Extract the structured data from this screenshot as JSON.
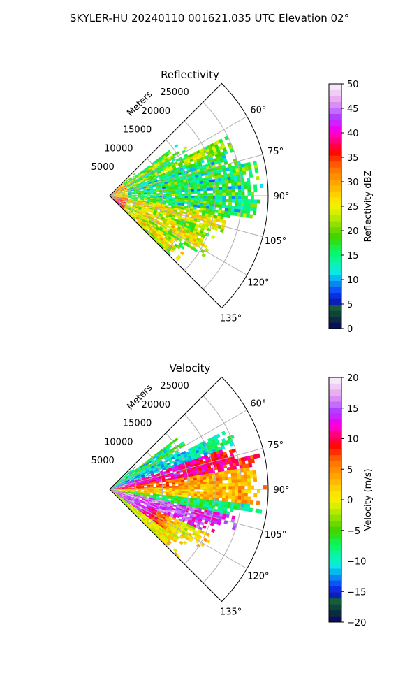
{
  "figure_title": "SKYLER-HU  20240110  001621.035 UTC Elevation 02°",
  "chart_data": [
    {
      "type": "heatmap",
      "projection": "polar-sector",
      "title": "Reflectivity",
      "radial_axis_label": "Meters",
      "radial_ticks": [
        5000,
        10000,
        15000,
        20000,
        25000
      ],
      "radial_tick_labels": [
        "5000",
        "10000",
        "15000",
        "20000",
        "25000"
      ],
      "rlim": [
        0,
        30000
      ],
      "azimuth_ticks": [
        60,
        75,
        90,
        105,
        120,
        135
      ],
      "azimuth_tick_labels": [
        "60°",
        "75°",
        "90°",
        "105°",
        "120°",
        "135°"
      ],
      "thetalim": [
        45,
        135
      ],
      "grid": true,
      "colorbar": {
        "label": "Reflectivity dBZ",
        "range": [
          0,
          50
        ],
        "ticks": [
          0,
          5,
          10,
          15,
          20,
          25,
          30,
          35,
          40,
          45,
          50
        ],
        "tick_labels": [
          "0",
          "5",
          "10",
          "15",
          "20",
          "25",
          "30",
          "35",
          "40",
          "45",
          "50"
        ],
        "colors": [
          "#0b0f5a",
          "#0c2a40",
          "#11433a",
          "#145e3a",
          "#0a1fb8",
          "#0a2ee0",
          "#0a55f5",
          "#0a86f2",
          "#0ab7f0",
          "#0ae8e6",
          "#0af0c0",
          "#0af59a",
          "#0af574",
          "#16f04c",
          "#2ce01e",
          "#44d400",
          "#6cd800",
          "#90e000",
          "#b4ea00",
          "#d8f000",
          "#f2f000",
          "#fde400",
          "#ffd000",
          "#ffba00",
          "#ffa400",
          "#ff8e00",
          "#ff7800",
          "#ff5a00",
          "#ff3000",
          "#ff0a00",
          "#ff0040",
          "#ff0080",
          "#ff00c0",
          "#f000f0",
          "#cc22ff",
          "#b040ff",
          "#c66bff",
          "#d98ef5",
          "#e7aef0",
          "#f1cdf4",
          "#f8e6fb"
        ]
      }
    },
    {
      "type": "heatmap",
      "projection": "polar-sector",
      "title": "Velocity",
      "radial_axis_label": "Meters",
      "radial_ticks": [
        5000,
        10000,
        15000,
        20000,
        25000
      ],
      "radial_tick_labels": [
        "5000",
        "10000",
        "15000",
        "20000",
        "25000"
      ],
      "rlim": [
        0,
        30000
      ],
      "azimuth_ticks": [
        60,
        75,
        90,
        105,
        120,
        135
      ],
      "azimuth_tick_labels": [
        "60°",
        "75°",
        "90°",
        "105°",
        "120°",
        "135°"
      ],
      "thetalim": [
        45,
        135
      ],
      "grid": true,
      "colorbar": {
        "label": "Velocity (m/s)",
        "range": [
          -20,
          20
        ],
        "ticks": [
          -20,
          -15,
          -10,
          -5,
          0,
          5,
          10,
          15,
          20
        ],
        "tick_labels": [
          "−20",
          "−15",
          "−10",
          "−5",
          "0",
          "5",
          "10",
          "15",
          "20"
        ],
        "colors": [
          "#0b0f5a",
          "#0c2a40",
          "#11433a",
          "#145e3a",
          "#0a1fb8",
          "#0a2ee0",
          "#0a55f5",
          "#0a86f2",
          "#0ab7f0",
          "#0ae8e6",
          "#0af0c0",
          "#0af59a",
          "#0af574",
          "#16f04c",
          "#2ce01e",
          "#44d400",
          "#6cd800",
          "#90e000",
          "#b4ea00",
          "#d8f000",
          "#f2f000",
          "#fde400",
          "#ffd000",
          "#ffba00",
          "#ffa400",
          "#ff8e00",
          "#ff7800",
          "#ff5a00",
          "#ff3000",
          "#ff0a00",
          "#ff0040",
          "#ff0080",
          "#ff00c0",
          "#f000f0",
          "#cc22ff",
          "#b040ff",
          "#c66bff",
          "#d98ef5",
          "#e7aef0",
          "#f1cdf4",
          "#f8e6fb"
        ]
      }
    }
  ]
}
